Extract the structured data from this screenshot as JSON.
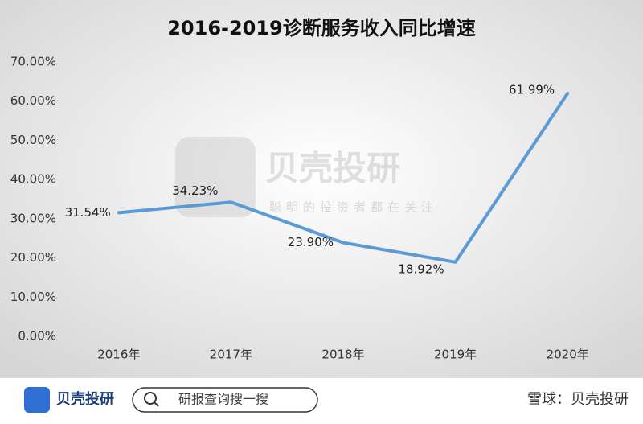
{
  "chart_data": {
    "type": "line",
    "title": "2016-2019诊断服务收入同比增速",
    "categories": [
      "2016年",
      "2017年",
      "2018年",
      "2019年",
      "2020年"
    ],
    "values": [
      31.54,
      34.23,
      23.9,
      18.92,
      61.99
    ],
    "value_labels": [
      "31.54%",
      "34.23%",
      "23.90%",
      "18.92%",
      "61.99%"
    ],
    "color": "#5b9bd5",
    "ylim": [
      0,
      70
    ],
    "yticks": [
      {
        "value": 0,
        "label": "0.00%"
      },
      {
        "value": 10,
        "label": "10.00%"
      },
      {
        "value": 20,
        "label": "20.00%"
      },
      {
        "value": 30,
        "label": "30.00%"
      },
      {
        "value": 40,
        "label": "40.00%"
      },
      {
        "value": 50,
        "label": "50.00%"
      },
      {
        "value": 60,
        "label": "60.00%"
      },
      {
        "value": 70,
        "label": "70.00%"
      }
    ]
  },
  "watermark": {
    "brand": "贝壳投研",
    "slogan": "聪明的投资者都在关注"
  },
  "footer": {
    "brand": "贝壳投研",
    "search": "研报查询搜一搜",
    "source": "雪球：贝壳投研"
  }
}
